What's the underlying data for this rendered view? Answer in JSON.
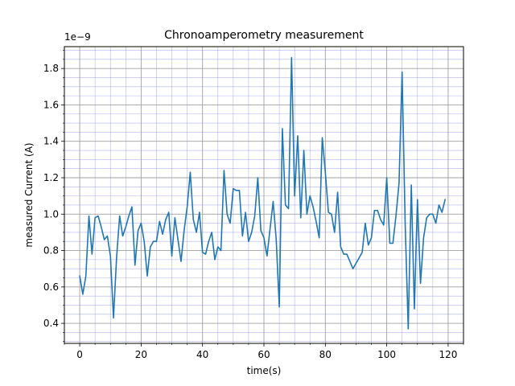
{
  "chart_data": {
    "type": "line",
    "title": "Chronoamperometry measurement",
    "xlabel": "time(s)",
    "ylabel": "measured Current (A)",
    "y_offset_label": "1e−9",
    "xlim": [
      -5,
      125
    ],
    "ylim": [
      0.29,
      1.92
    ],
    "y_scale_exponent": -9,
    "x_ticks": [
      0,
      20,
      40,
      60,
      80,
      100,
      120
    ],
    "x_tick_labels": [
      "0",
      "20",
      "40",
      "60",
      "80",
      "100",
      "120"
    ],
    "y_ticks": [
      0.4,
      0.6,
      0.8,
      1.0,
      1.2,
      1.4,
      1.6,
      1.8
    ],
    "y_tick_labels": [
      "0.4",
      "0.6",
      "0.8",
      "1.0",
      "1.2",
      "1.4",
      "1.6",
      "1.8"
    ],
    "x_minor_step": 5,
    "y_minor_step": 0.05,
    "grid": true,
    "colors": {
      "line": "#1f77b4",
      "major_grid": "#a0a0a0",
      "minor_grid": "#9999ee"
    },
    "series": [
      {
        "x": [
          0,
          1,
          2,
          3,
          4,
          5,
          6,
          7,
          8,
          9,
          10,
          11,
          12,
          13,
          14,
          15,
          16,
          17,
          18,
          19,
          20,
          21,
          22,
          23,
          24,
          25,
          26,
          27,
          28,
          29,
          30,
          31,
          32,
          33,
          34,
          35,
          36,
          37,
          38,
          39,
          40,
          41,
          42,
          43,
          44,
          45,
          46,
          47,
          48,
          49,
          50,
          51,
          52,
          53,
          54,
          55,
          56,
          57,
          58,
          59,
          60,
          61,
          62,
          63,
          64,
          65,
          66,
          67,
          68,
          69,
          70,
          71,
          72,
          73,
          74,
          75,
          76,
          77,
          78,
          79,
          80,
          81,
          82,
          83,
          84,
          85,
          86,
          87,
          88,
          89,
          90,
          91,
          92,
          93,
          94,
          95,
          96,
          97,
          98,
          99,
          100,
          101,
          102,
          103,
          104,
          105,
          106,
          107,
          108,
          109,
          110,
          111,
          112,
          113,
          114,
          115,
          116,
          117,
          118,
          119
        ],
        "y": [
          0.66,
          0.56,
          0.66,
          0.99,
          0.78,
          0.98,
          0.99,
          0.93,
          0.86,
          0.88,
          0.77,
          0.43,
          0.76,
          0.99,
          0.88,
          0.93,
          0.99,
          1.04,
          0.72,
          0.91,
          0.95,
          0.85,
          0.66,
          0.82,
          0.85,
          0.85,
          0.96,
          0.89,
          0.97,
          1.01,
          0.77,
          0.98,
          0.86,
          0.74,
          0.91,
          1.04,
          1.23,
          0.97,
          0.9,
          1.01,
          0.79,
          0.78,
          0.85,
          0.9,
          0.75,
          0.82,
          0.8,
          1.24,
          1.0,
          0.95,
          1.14,
          1.13,
          1.13,
          0.88,
          1.01,
          0.85,
          0.9,
          0.99,
          1.2,
          0.91,
          0.87,
          0.77,
          0.92,
          1.07,
          0.86,
          0.49,
          1.47,
          1.05,
          1.03,
          1.86,
          1.1,
          1.43,
          0.98,
          1.35,
          1.0,
          1.1,
          1.04,
          0.96,
          0.87,
          1.42,
          1.23,
          1.01,
          1.0,
          0.9,
          1.12,
          0.82,
          0.78,
          0.78,
          0.74,
          0.7,
          0.73,
          0.76,
          0.79,
          0.95,
          0.83,
          0.87,
          1.02,
          1.02,
          0.97,
          0.94,
          1.2,
          0.84,
          0.84,
          0.99,
          1.17,
          1.78,
          0.95,
          0.37,
          1.16,
          0.48,
          1.08,
          0.62,
          0.87,
          0.98,
          1.0,
          1.0,
          0.95,
          1.05,
          1.01,
          1.08
        ]
      }
    ]
  }
}
